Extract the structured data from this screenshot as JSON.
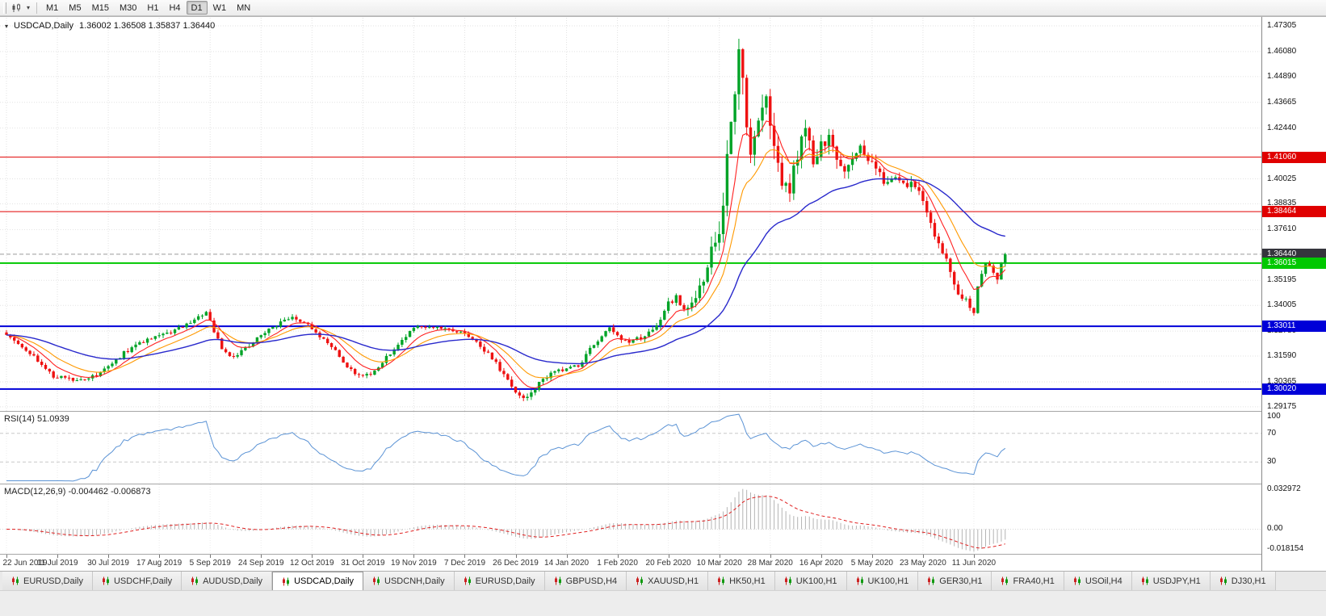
{
  "colors": {
    "candle_up": "#00a327",
    "candle_down": "#ee1111",
    "ma_fast": "#ff2020",
    "ma_mid": "#ff9900",
    "ma_slow": "#2929cc",
    "rsi_line": "#5b93d5",
    "macd_hist": "#b4b4b4",
    "macd_signal": "#e02020",
    "hline_red": "#e00000",
    "hline_green": "#00c800",
    "hline_blue": "#0000d8",
    "current_price_line": "#9a9a9a",
    "current_price_badge": "#35353d",
    "grid": "#e2e2e2"
  },
  "toolbar": {
    "timeframes": [
      "M1",
      "M5",
      "M15",
      "M30",
      "H1",
      "H4",
      "D1",
      "W1",
      "MN"
    ],
    "active_timeframe": "D1"
  },
  "chart": {
    "symbol_period": "USDCAD,Daily",
    "ohlc": "1.36002 1.36508 1.35837 1.36440"
  },
  "price_axis": {
    "labels": [
      "1.47305",
      "1.46080",
      "1.44890",
      "1.43665",
      "1.42440",
      "1.40025",
      "1.38835",
      "1.37610",
      "1.35195",
      "1.34005",
      "1.32780",
      "1.31590",
      "1.30365",
      "1.29175"
    ],
    "badges": [
      {
        "text": "1.41060",
        "price": 1.4106,
        "type": "red"
      },
      {
        "text": "1.38464",
        "price": 1.38464,
        "type": "red"
      },
      {
        "text": "1.36440",
        "price": 1.3644,
        "type": "current"
      },
      {
        "text": "1.36015",
        "price": 1.36015,
        "type": "green"
      },
      {
        "text": "1.33011",
        "price": 1.33011,
        "type": "blue"
      },
      {
        "text": "1.30020",
        "price": 1.3002,
        "type": "blue"
      }
    ]
  },
  "hlines": [
    {
      "price": 1.4106,
      "type": "red",
      "width": 1
    },
    {
      "price": 1.38464,
      "type": "red",
      "width": 1
    },
    {
      "price": 1.36015,
      "type": "green",
      "width": 2
    },
    {
      "price": 1.33011,
      "type": "blue",
      "width": 2
    },
    {
      "price": 1.3002,
      "type": "blue",
      "width": 2
    }
  ],
  "current_price": 1.3644,
  "time_axis": [
    "22 Jun 2019",
    "11 Jul 2019",
    "30 Jul 2019",
    "17 Aug 2019",
    "5 Sep 2019",
    "24 Sep 2019",
    "12 Oct 2019",
    "31 Oct 2019",
    "19 Nov 2019",
    "7 Dec 2019",
    "26 Dec 2019",
    "14 Jan 2020",
    "1 Feb 2020",
    "20 Feb 2020",
    "10 Mar 2020",
    "28 Mar 2020",
    "16 Apr 2020",
    "5 May 2020",
    "23 May 2020",
    "11 Jun 2020"
  ],
  "rsi": {
    "label_full": "RSI(14) 51.0939",
    "value": 51.0939,
    "levels": [
      {
        "text": "100",
        "value": 100
      },
      {
        "text": "70",
        "value": 70
      },
      {
        "text": "30",
        "value": 30
      }
    ],
    "level_lines": [
      70,
      30
    ]
  },
  "macd": {
    "label_full": "MACD(12,26,9) -0.004462 -0.006873",
    "main": -0.004462,
    "signal": -0.006873,
    "axis_labels": [
      {
        "text": "0.032972",
        "value": 0.032972
      },
      {
        "text": "0.00",
        "value": 0
      },
      {
        "text": "-0.018154",
        "value": -0.018154
      }
    ]
  },
  "tabs": {
    "items": [
      "EURUSD,Daily",
      "USDCHF,Daily",
      "AUDUSD,Daily",
      "USDCAD,Daily",
      "USDCNH,Daily",
      "EURUSD,Daily",
      "GBPUSD,H4",
      "XAUUSD,H1",
      "HK50,H1",
      "UK100,H1",
      "UK100,H1",
      "GER30,H1",
      "FRA40,H1",
      "USOil,H4",
      "USDJPY,H1",
      "DJ30,H1"
    ],
    "active_index": 3
  },
  "chart_data": {
    "type": "candlestick",
    "symbol": "USDCAD",
    "period": "Daily",
    "bars": 256,
    "bars_per_label": 13,
    "price_min": 1.2898,
    "price_max": 1.4769,
    "last_bar": {
      "open": 1.36002,
      "high": 1.36508,
      "low": 1.35837,
      "close": 1.3644
    },
    "close_keypoints": [
      [
        0,
        1.3265
      ],
      [
        6,
        1.317
      ],
      [
        12,
        1.3065
      ],
      [
        18,
        1.3045
      ],
      [
        24,
        1.3075
      ],
      [
        30,
        1.3175
      ],
      [
        36,
        1.324
      ],
      [
        42,
        1.327
      ],
      [
        48,
        1.333
      ],
      [
        51,
        1.336
      ],
      [
        55,
        1.32
      ],
      [
        58,
        1.315
      ],
      [
        63,
        1.323
      ],
      [
        68,
        1.33
      ],
      [
        73,
        1.334
      ],
      [
        78,
        1.3295
      ],
      [
        84,
        1.318
      ],
      [
        89,
        1.307
      ],
      [
        93,
        1.3065
      ],
      [
        98,
        1.3175
      ],
      [
        104,
        1.329
      ],
      [
        110,
        1.3305
      ],
      [
        114,
        1.328
      ],
      [
        118,
        1.3255
      ],
      [
        123,
        1.317
      ],
      [
        128,
        1.305
      ],
      [
        131,
        1.2965
      ],
      [
        133,
        1.2958
      ],
      [
        137,
        1.305
      ],
      [
        141,
        1.3095
      ],
      [
        146,
        1.311
      ],
      [
        150,
        1.3215
      ],
      [
        154,
        1.3295
      ],
      [
        158,
        1.3225
      ],
      [
        162,
        1.3245
      ],
      [
        166,
        1.331
      ],
      [
        169,
        1.342
      ],
      [
        171,
        1.3435
      ],
      [
        174,
        1.3385
      ],
      [
        177,
        1.348
      ],
      [
        180,
        1.366
      ],
      [
        182,
        1.3755
      ],
      [
        184,
        1.409
      ],
      [
        186,
        1.435
      ],
      [
        187,
        1.46
      ],
      [
        188,
        1.447
      ],
      [
        190,
        1.412
      ],
      [
        192,
        1.426
      ],
      [
        194,
        1.44
      ],
      [
        196,
        1.416
      ],
      [
        198,
        1.4
      ],
      [
        200,
        1.396
      ],
      [
        202,
        1.412
      ],
      [
        204,
        1.423
      ],
      [
        206,
        1.41
      ],
      [
        208,
        1.416
      ],
      [
        210,
        1.42
      ],
      [
        212,
        1.409
      ],
      [
        214,
        1.402
      ],
      [
        216,
        1.41
      ],
      [
        218,
        1.414
      ],
      [
        220,
        1.409
      ],
      [
        222,
        1.406
      ],
      [
        224,
        1.398
      ],
      [
        226,
        1.402
      ],
      [
        228,
        1.399
      ],
      [
        230,
        1.396
      ],
      [
        232,
        1.398
      ],
      [
        234,
        1.389
      ],
      [
        236,
        1.379
      ],
      [
        238,
        1.369
      ],
      [
        240,
        1.361
      ],
      [
        242,
        1.349
      ],
      [
        244,
        1.344
      ],
      [
        246,
        1.339
      ],
      [
        247,
        1.336
      ],
      [
        248,
        1.349
      ],
      [
        249,
        1.356
      ],
      [
        250,
        1.361
      ],
      [
        251,
        1.358
      ],
      [
        252,
        1.3545
      ],
      [
        253,
        1.3525
      ],
      [
        254,
        1.36
      ],
      [
        255,
        1.3644
      ]
    ],
    "volatility_keypoints": [
      [
        0,
        0.0016
      ],
      [
        60,
        0.0016
      ],
      [
        100,
        0.0015
      ],
      [
        130,
        0.0018
      ],
      [
        160,
        0.0018
      ],
      [
        172,
        0.003
      ],
      [
        178,
        0.0055
      ],
      [
        184,
        0.009
      ],
      [
        190,
        0.0095
      ],
      [
        196,
        0.0075
      ],
      [
        204,
        0.006
      ],
      [
        212,
        0.0048
      ],
      [
        222,
        0.0038
      ],
      [
        232,
        0.0032
      ],
      [
        242,
        0.003
      ],
      [
        250,
        0.0028
      ],
      [
        255,
        0.0025
      ]
    ],
    "moving_averages": [
      {
        "name": "fast",
        "period": 8
      },
      {
        "name": "mid",
        "period": 16
      },
      {
        "name": "slow",
        "period": 45
      }
    ],
    "indicators": {
      "rsi_period": 14,
      "macd": [
        12,
        26,
        9
      ]
    }
  }
}
